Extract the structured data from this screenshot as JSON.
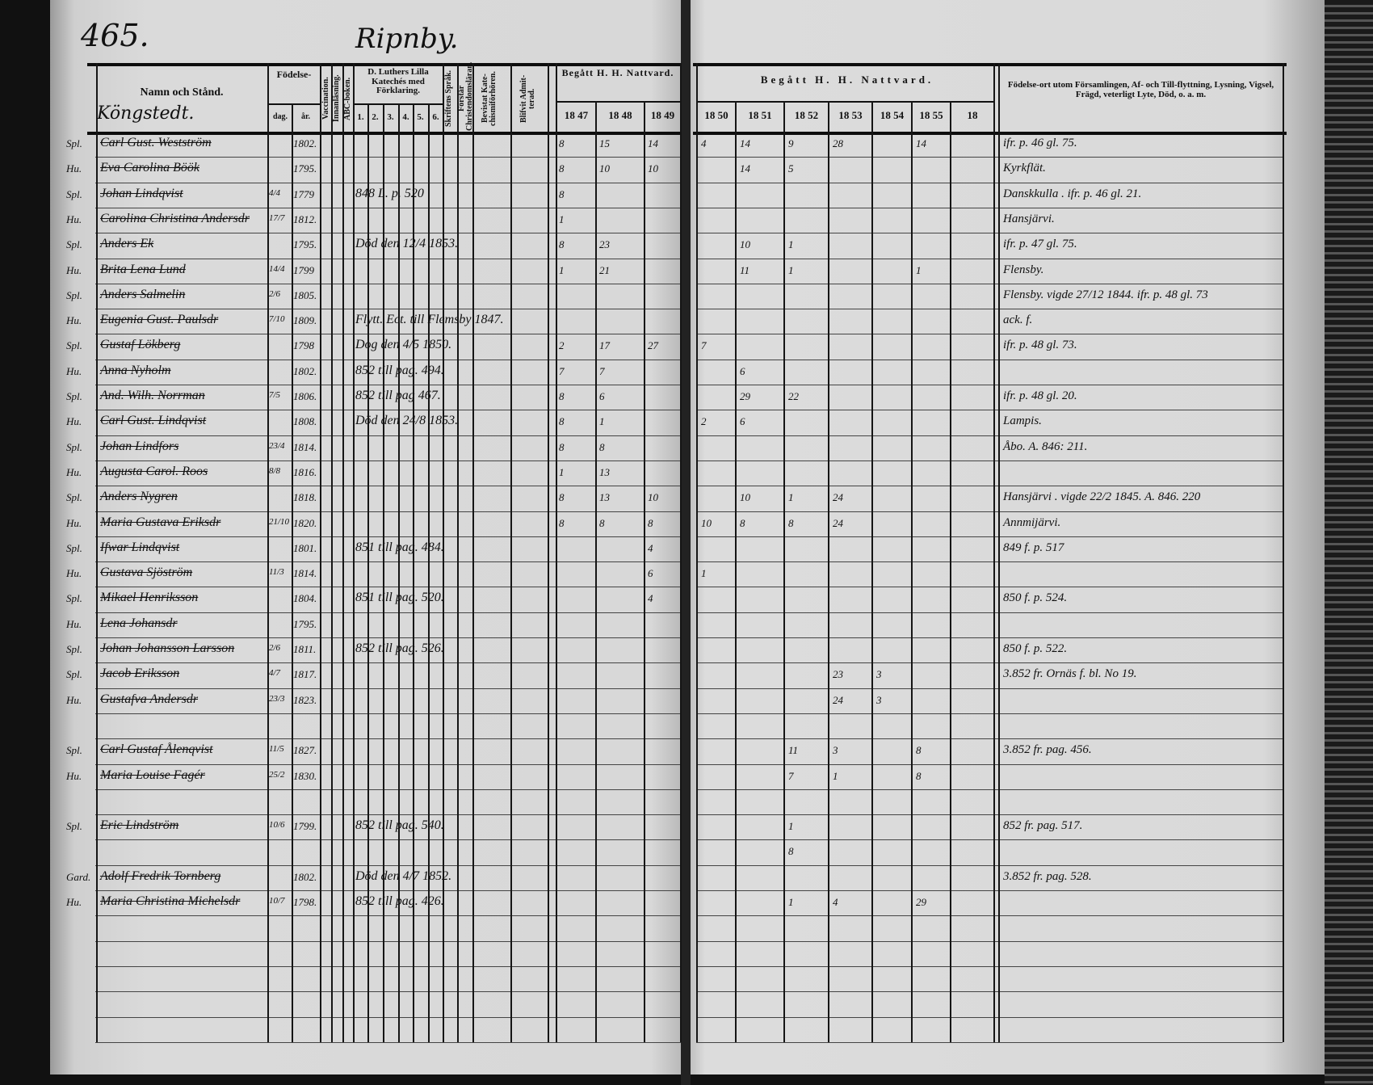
{
  "page_number": "465.",
  "village": "Ripnby.",
  "section_heading": "Köngstedt.",
  "left_headers": {
    "name": "Namn och Stånd.",
    "birth": "Födelse-",
    "birth_day": "dag.",
    "birth_year": "år.",
    "vaccination": "Vaccination.",
    "innanlasning": "Innanläsning.",
    "abc": "ABC-boken.",
    "catechism": "D. Luthers Lilla Katechés med Förklaring.",
    "catechism_parts": [
      "1.",
      "2.",
      "3.",
      "4.",
      "5.",
      "6."
    ],
    "skriftens": "Skriftens Språk.",
    "forstar": "Förstår Christendomsläran.",
    "bevistat": "Bevistat Kate-chismiförhören.",
    "blifvit": "Blifvit Admit-terad.",
    "communion": "Begått H. H. Nattvard.",
    "years": [
      "18 47",
      "18 48",
      "18 49"
    ]
  },
  "right_headers": {
    "communion": "Begått H. H. Nattvard.",
    "years": [
      "18 50",
      "18 51",
      "18 52",
      "18 53",
      "18 54",
      "18 55",
      "18"
    ],
    "notes": "Födelse-ort utom Församlingen, Af- och Till-flyttning, Lysning, Vigsel, Frägd, veterligt Lyte, Död, o. a. m."
  },
  "rows": [
    {
      "title": "Spl.",
      "name": "Carl Gust. Westström",
      "day": "",
      "year": "1802.",
      "remark": "",
      "comm": [
        "8",
        "15",
        "14",
        "4",
        "14",
        "9",
        "28",
        "",
        "14",
        ""
      ],
      "note": "ifr. p. 46 gl. 75."
    },
    {
      "title": "Hu.",
      "name": "Eva Carolina Böök",
      "day": "",
      "year": "1795.",
      "remark": "",
      "comm": [
        "8",
        "10",
        "10",
        "",
        "14",
        "5",
        "",
        "",
        "",
        ""
      ],
      "note": "Kyrkflät."
    },
    {
      "title": "Spl.",
      "name": "Johan Lindqvist",
      "day": "4/4",
      "year": "1779",
      "remark": "848 L. p. 520",
      "comm": [
        "8",
        "",
        "",
        "",
        "",
        "",
        "",
        "",
        "",
        ""
      ],
      "note": "Danskkulla . ifr. p. 46 gl. 21."
    },
    {
      "title": "Hu.",
      "name": "Carolina Christina Andersdr",
      "day": "17/7",
      "year": "1812.",
      "remark": "",
      "comm": [
        "1",
        "",
        "",
        "",
        "",
        "",
        "",
        "",
        "",
        ""
      ],
      "note": "Hansjärvi."
    },
    {
      "title": "Spl.",
      "name": "Anders Ek",
      "day": "",
      "year": "1795.",
      "remark": "Död den 12/4 1853.",
      "comm": [
        "8",
        "23",
        "",
        "",
        "10",
        "1",
        "",
        "",
        "",
        ""
      ],
      "note": "ifr. p. 47 gl. 75."
    },
    {
      "title": "Hu.",
      "name": "Brita Lena Lund",
      "day": "14/4",
      "year": "1799",
      "remark": "",
      "comm": [
        "1",
        "21",
        "",
        "",
        "11",
        "1",
        "",
        "",
        "1",
        ""
      ],
      "note": "Flensby."
    },
    {
      "title": "Spl.",
      "name": "Anders Salmelin",
      "day": "2/6",
      "year": "1805.",
      "remark": "",
      "comm": [
        "",
        "",
        "",
        "",
        "",
        "",
        "",
        "",
        "",
        ""
      ],
      "note": "Flensby. vigde 27/12 1844. ifr. p. 48 gl. 73"
    },
    {
      "title": "Hu.",
      "name": "Eugenia Gust. Paulsdr",
      "day": "7/10",
      "year": "1809.",
      "remark": "Flytt. Ect. till Flemsby 1847.",
      "comm": [
        "",
        "",
        "",
        "",
        "",
        "",
        "",
        "",
        "",
        ""
      ],
      "note": "ack. f."
    },
    {
      "title": "Spl.",
      "name": "Gustaf Lökberg",
      "day": "",
      "year": "1798",
      "remark": "Dog den 4/5 1850.",
      "comm": [
        "2",
        "17",
        "27",
        "7",
        "",
        "",
        "",
        "",
        "",
        ""
      ],
      "note": "ifr. p. 48 gl. 73."
    },
    {
      "title": "Hu.",
      "name": "Anna Nyholm",
      "day": "",
      "year": "1802.",
      "remark": "852 till pag. 494.",
      "comm": [
        "7",
        "7",
        "",
        "",
        "6",
        "",
        "",
        "",
        "",
        ""
      ],
      "note": ""
    },
    {
      "title": "Spl.",
      "name": "And. Wilh. Norrman",
      "day": "7/5",
      "year": "1806.",
      "remark": "852 till pag 467.",
      "comm": [
        "8",
        "6",
        "",
        "",
        "29",
        "22",
        "",
        "",
        "",
        ""
      ],
      "note": "ifr. p. 48 gl. 20."
    },
    {
      "title": "Hu.",
      "name": "Carl Gust. Lindqvist",
      "day": "",
      "year": "1808.",
      "remark": "Död den 24/8 1853.",
      "comm": [
        "8",
        "1",
        "",
        "2",
        "6",
        "",
        "",
        "",
        "",
        ""
      ],
      "note": "Lampis."
    },
    {
      "title": "Spl.",
      "name": "Johan Lindfors",
      "day": "23/4",
      "year": "1814.",
      "remark": "",
      "comm": [
        "8",
        "8",
        "",
        "",
        "",
        "",
        "",
        "",
        "",
        ""
      ],
      "note": "Åbo. A. 846: 211."
    },
    {
      "title": "Hu.",
      "name": "Augusta Carol. Roos",
      "day": "8/8",
      "year": "1816.",
      "remark": "",
      "comm": [
        "1",
        "13",
        "",
        "",
        "",
        "",
        "",
        "",
        "",
        ""
      ],
      "note": ""
    },
    {
      "title": "Spl.",
      "name": "Anders Nygren",
      "day": "",
      "year": "1818.",
      "remark": "",
      "comm": [
        "8",
        "13",
        "10",
        "",
        "10",
        "1",
        "24",
        "",
        "",
        ""
      ],
      "note": "Hansjärvi . vigde 22/2 1845. A. 846. 220"
    },
    {
      "title": "Hu.",
      "name": "Maria Gustava Eriksdr",
      "day": "21/10",
      "year": "1820.",
      "remark": "",
      "comm": [
        "8",
        "8",
        "8",
        "10",
        "8",
        "8",
        "24",
        "",
        "",
        ""
      ],
      "note": "Annmijärvi."
    },
    {
      "title": "Spl.",
      "name": "Ifwar Lindqvist",
      "day": "",
      "year": "1801.",
      "remark": "851 till pag. 484.",
      "comm": [
        "",
        "",
        "4",
        "",
        "",
        "",
        "",
        "",
        "",
        ""
      ],
      "note": "849 f. p. 517"
    },
    {
      "title": "Hu.",
      "name": "Gustava Sjöström",
      "day": "11/3",
      "year": "1814.",
      "remark": "",
      "comm": [
        "",
        "",
        "6",
        "1",
        "",
        "",
        "",
        "",
        "",
        ""
      ],
      "note": ""
    },
    {
      "title": "Spl.",
      "name": "Mikael Henriksson",
      "day": "",
      "year": "1804.",
      "remark": "851 till pag. 520.",
      "comm": [
        "",
        "",
        "4",
        "",
        "",
        "",
        "",
        "",
        "",
        ""
      ],
      "note": "850 f. p. 524."
    },
    {
      "title": "Hu.",
      "name": "Lena Johansdr",
      "day": "",
      "year": "1795.",
      "remark": "",
      "comm": [
        "",
        "",
        "",
        "",
        "",
        "",
        "",
        "",
        "",
        ""
      ],
      "note": ""
    },
    {
      "title": "Spl.",
      "name": "Johan Johansson Larsson",
      "day": "2/6",
      "year": "1811.",
      "remark": "852 till pag. 526.",
      "comm": [
        "",
        "",
        "",
        "",
        "",
        "",
        "",
        "",
        "",
        ""
      ],
      "note": "850 f. p. 522."
    },
    {
      "title": "Spl.",
      "name": "Jacob Eriksson",
      "day": "4/7",
      "year": "1817.",
      "remark": "",
      "comm": [
        "",
        "",
        "",
        "",
        "",
        "",
        "23",
        "3",
        "",
        ""
      ],
      "note": "3.852 fr. Ornäs f. bl. No 19."
    },
    {
      "title": "Hu.",
      "name": "Gustafva Andersdr",
      "day": "23/3",
      "year": "1823.",
      "remark": "",
      "comm": [
        "",
        "",
        "",
        "",
        "",
        "",
        "24",
        "3",
        "",
        ""
      ],
      "note": ""
    },
    {
      "title": "",
      "name": "",
      "day": "",
      "year": "",
      "remark": "",
      "comm": [
        "",
        "",
        "",
        "",
        "",
        "",
        "",
        "",
        "",
        ""
      ],
      "note": ""
    },
    {
      "title": "Spl.",
      "name": "Carl Gustaf Ålenqvist",
      "day": "11/5",
      "year": "1827.",
      "remark": "",
      "comm": [
        "",
        "",
        "",
        "",
        "",
        "11",
        "3",
        "",
        "8",
        ""
      ],
      "note": "3.852 fr. pag. 456."
    },
    {
      "title": "Hu.",
      "name": "Maria Louise Fagér",
      "day": "25/2",
      "year": "1830.",
      "remark": "",
      "comm": [
        "",
        "",
        "",
        "",
        "",
        "7",
        "1",
        "",
        "8",
        ""
      ],
      "note": ""
    },
    {
      "title": "",
      "name": "",
      "day": "",
      "year": "",
      "remark": "",
      "comm": [
        "",
        "",
        "",
        "",
        "",
        "",
        "",
        "",
        "",
        ""
      ],
      "note": ""
    },
    {
      "title": "Spl.",
      "name": "Eric Lindström",
      "day": "10/6",
      "year": "1799.",
      "remark": "852 till pag. 540.",
      "comm": [
        "",
        "",
        "",
        "",
        "",
        "1",
        "",
        "",
        "",
        ""
      ],
      "note": "852 fr. pag. 517."
    },
    {
      "title": "",
      "name": "",
      "day": "",
      "year": "",
      "remark": "",
      "comm": [
        "",
        "",
        "",
        "",
        "",
        "8",
        "",
        "",
        "",
        ""
      ],
      "note": ""
    },
    {
      "title": "Gard.",
      "name": "Adolf Fredrik Tornberg",
      "day": "",
      "year": "1802.",
      "remark": "Död den 4/7 1852.",
      "comm": [
        "",
        "",
        "",
        "",
        "",
        "",
        "",
        "",
        "",
        ""
      ],
      "note": "3.852 fr. pag. 528."
    },
    {
      "title": "Hu.",
      "name": "Maria Christina Michelsdr",
      "day": "10/7",
      "year": "1798.",
      "remark": "852 till pag. 426.",
      "comm": [
        "",
        "",
        "",
        "",
        "",
        "1",
        "4",
        "",
        "29",
        ""
      ],
      "note": ""
    },
    {
      "title": "",
      "name": "",
      "day": "",
      "year": "",
      "remark": "",
      "comm": [
        "",
        "",
        "",
        "",
        "",
        "",
        "",
        "",
        "",
        ""
      ],
      "note": ""
    },
    {
      "title": "",
      "name": "",
      "day": "",
      "year": "",
      "remark": "",
      "comm": [
        "",
        "",
        "",
        "",
        "",
        "",
        "",
        "",
        "",
        ""
      ],
      "note": ""
    },
    {
      "title": "",
      "name": "",
      "day": "",
      "year": "",
      "remark": "",
      "comm": [
        "",
        "",
        "",
        "",
        "",
        "",
        "",
        "",
        "",
        ""
      ],
      "note": ""
    },
    {
      "title": "",
      "name": "",
      "day": "",
      "year": "",
      "remark": "",
      "comm": [
        "",
        "",
        "",
        "",
        "",
        "",
        "",
        "",
        "",
        ""
      ],
      "note": ""
    },
    {
      "title": "",
      "name": "",
      "day": "",
      "year": "",
      "remark": "",
      "comm": [
        "",
        "",
        "",
        "",
        "",
        "",
        "",
        "",
        "",
        ""
      ],
      "note": ""
    }
  ]
}
